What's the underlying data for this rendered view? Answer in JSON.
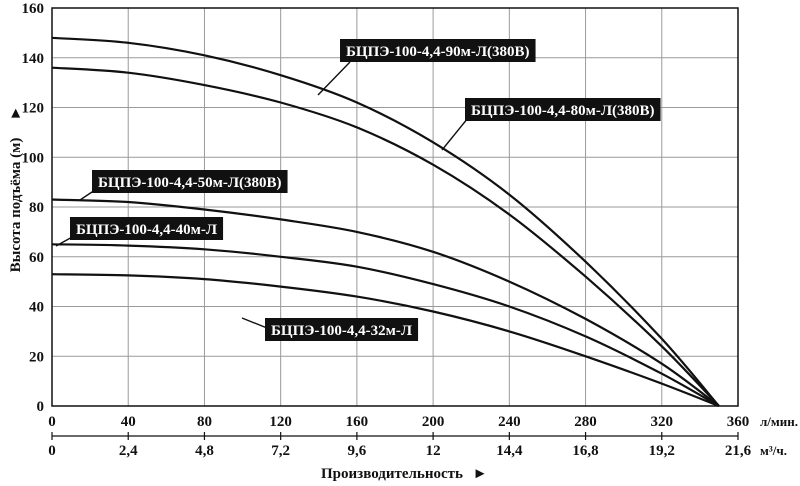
{
  "chart_data": {
    "type": "line",
    "ylabel": "Высота подъёма (м)",
    "xlabel": "Производительность",
    "xlim": [
      0,
      360
    ],
    "ylim": [
      0,
      160
    ],
    "x_unit_primary": "л/мин.",
    "x_unit_secondary": "м³/ч.",
    "x_ticks_primary": [
      "0",
      "40",
      "80",
      "120",
      "160",
      "200",
      "240",
      "280",
      "320",
      "360"
    ],
    "x_ticks_secondary": [
      "0",
      "2,4",
      "4,8",
      "7,2",
      "9,6",
      "12",
      "14,4",
      "16,8",
      "19,2",
      "21,6"
    ],
    "y_ticks": [
      "0",
      "20",
      "40",
      "60",
      "80",
      "100",
      "120",
      "140",
      "160"
    ],
    "grid": true,
    "series": [
      {
        "name": "БЦПЭ-100-4,4-90м-Л(380В)",
        "x": [
          0,
          40,
          80,
          120,
          160,
          200,
          240,
          280,
          320,
          350
        ],
        "values": [
          148,
          146,
          141,
          133,
          122,
          106,
          85,
          58,
          27,
          0
        ]
      },
      {
        "name": "БЦПЭ-100-4,4-80м-Л(380В)",
        "x": [
          0,
          40,
          80,
          120,
          160,
          200,
          240,
          280,
          320,
          350
        ],
        "values": [
          136,
          134,
          129,
          122,
          112,
          97,
          77,
          52,
          24,
          0
        ]
      },
      {
        "name": "БЦПЭ-100-4,4-50м-Л(380В)",
        "x": [
          0,
          40,
          80,
          120,
          160,
          200,
          240,
          280,
          320,
          350
        ],
        "values": [
          83,
          82,
          79,
          75,
          70,
          62,
          50,
          35,
          17,
          0
        ]
      },
      {
        "name": "БЦПЭ-100-4,4-40м-Л",
        "x": [
          0,
          40,
          80,
          120,
          160,
          200,
          240,
          280,
          320,
          350
        ],
        "values": [
          65,
          64.5,
          63,
          60,
          56,
          49,
          40,
          28,
          13,
          0
        ]
      },
      {
        "name": "БЦПЭ-100-4,4-32м-Л",
        "x": [
          0,
          40,
          80,
          120,
          160,
          200,
          240,
          280,
          320,
          350
        ],
        "values": [
          53,
          52.5,
          51,
          48,
          44,
          38,
          30,
          20,
          9,
          0
        ]
      }
    ]
  }
}
